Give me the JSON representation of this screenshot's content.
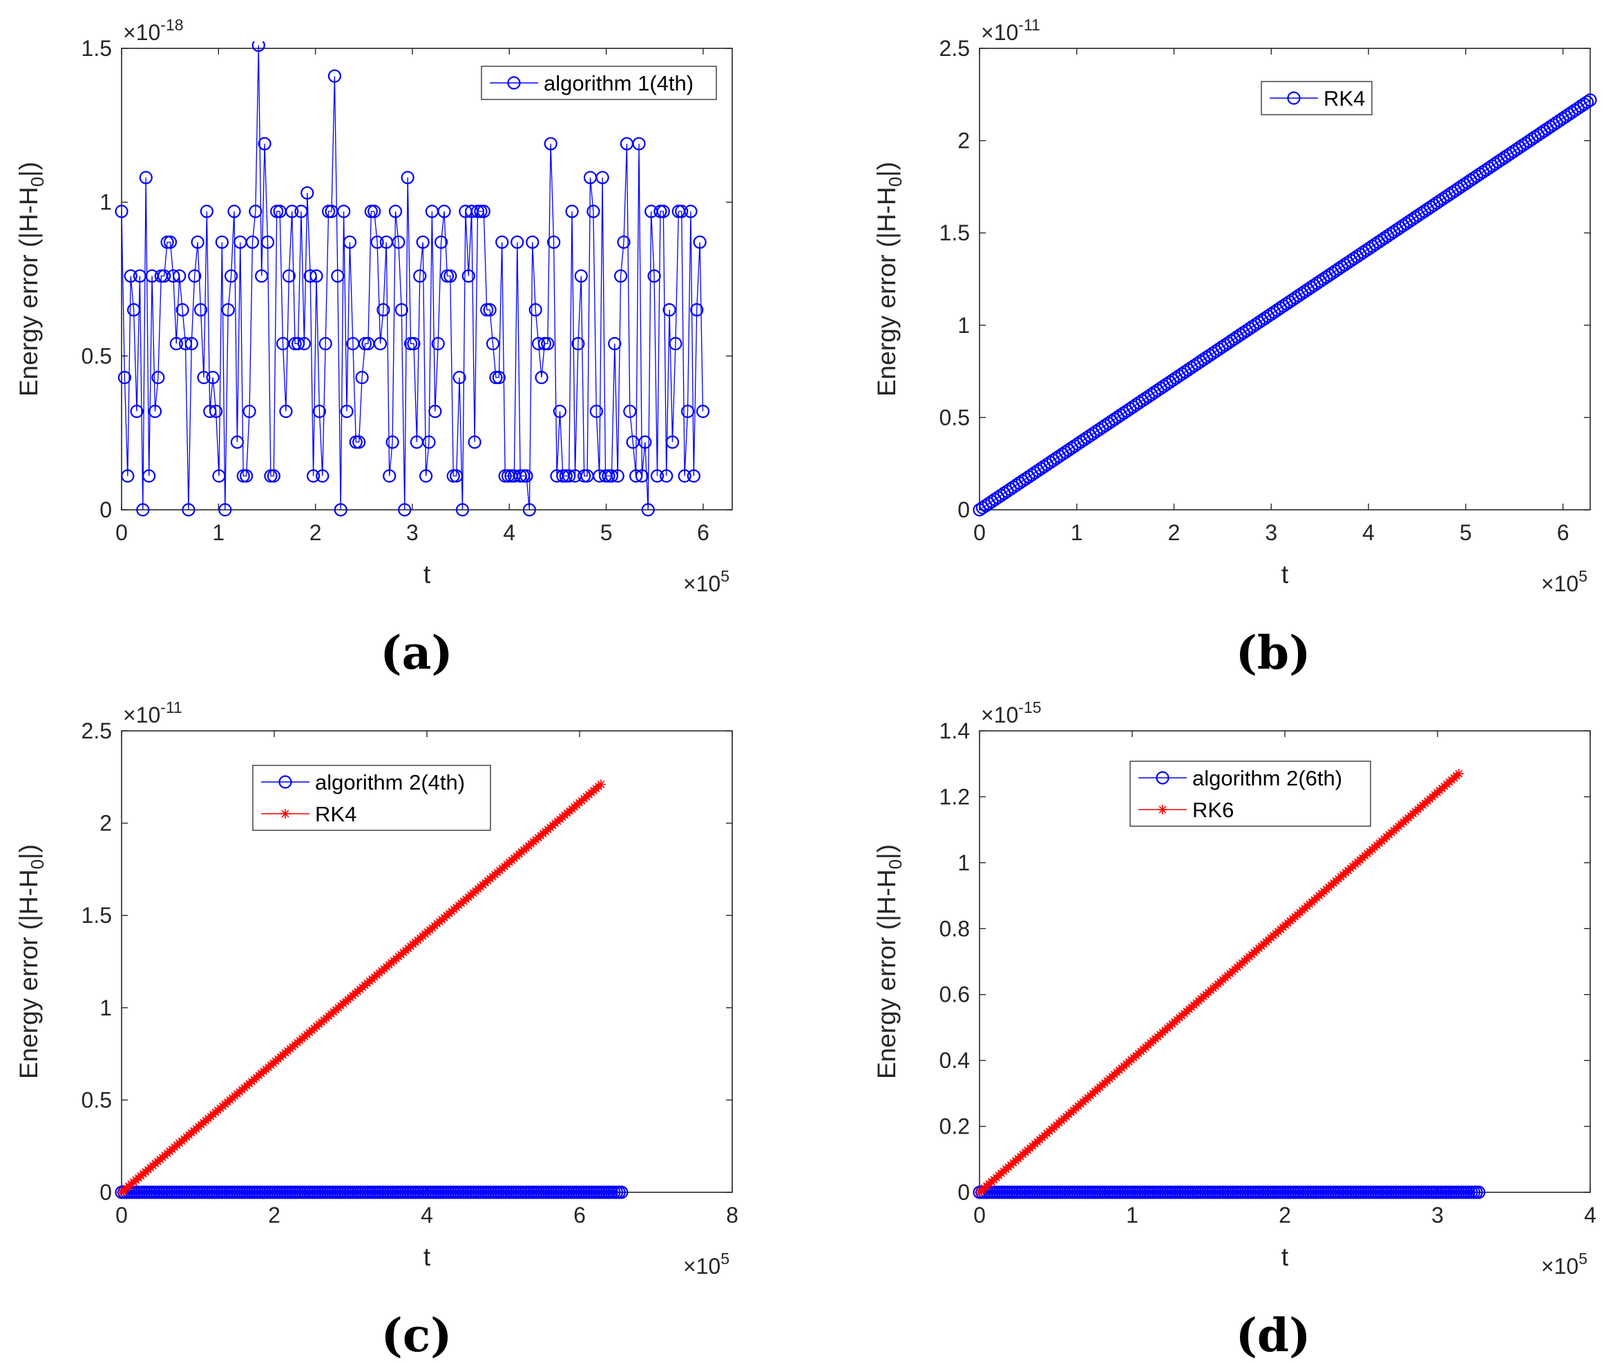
{
  "colors": {
    "blue": "#0000ff",
    "red": "#ff0000",
    "axis": "#262626",
    "grid": "#000000"
  },
  "chart_data": [
    {
      "panel": "(a)",
      "type": "line",
      "xlabel": "t",
      "ylabel_parts": [
        "Energy error (|H-H",
        "0",
        "|)"
      ],
      "x_multiplier_base": "×10",
      "x_multiplier_exp": "5",
      "y_multiplier_base": "×10",
      "y_multiplier_exp": "-18",
      "xlim": [
        0,
        6.3
      ],
      "ylim": [
        0,
        1.5
      ],
      "xticks": [
        0,
        1,
        2,
        3,
        4,
        5,
        6
      ],
      "yticks": [
        0,
        0.5,
        1,
        1.5
      ],
      "legend": "top-right",
      "series": [
        {
          "name": "algorithm 1(4th)",
          "color": "#0000ff",
          "marker": "circle",
          "x_start": 0,
          "x_step": 0.0314,
          "values": [
            0.97,
            0.43,
            0.11,
            0.76,
            0.65,
            0.32,
            0.76,
            0,
            1.08,
            0.11,
            0.76,
            0.32,
            0.43,
            0.76,
            0.76,
            0.87,
            0.87,
            0.76,
            0.54,
            0.76,
            0.65,
            0.54,
            0,
            0.54,
            0.76,
            0.87,
            0.65,
            0.43,
            0.97,
            0.32,
            0.43,
            0.32,
            0.11,
            0.87,
            0,
            0.65,
            0.76,
            0.97,
            0.22,
            0.87,
            0.11,
            0.11,
            0.32,
            0.87,
            0.97,
            1.51,
            0.76,
            1.19,
            0.87,
            0.11,
            0.11,
            0.97,
            0.97,
            0.54,
            0.32,
            0.76,
            0.97,
            0.54,
            0.54,
            0.97,
            0.54,
            1.03,
            0.76,
            0.11,
            0.76,
            0.32,
            0.11,
            0.54,
            0.97,
            0.97,
            1.41,
            0.76,
            0,
            0.97,
            0.32,
            0.87,
            0.54,
            0.22,
            0.22,
            0.43,
            0.54,
            0.54,
            0.97,
            0.97,
            0.87,
            0.54,
            0.65,
            0.87,
            0.11,
            0.22,
            0.97,
            0.87,
            0.65,
            0,
            1.08,
            0.54,
            0.54,
            0.22,
            0.76,
            0.87,
            0.11,
            0.22,
            0.97,
            0.32,
            0.54,
            0.87,
            0.97,
            0.76,
            0.76,
            0.11,
            0.11,
            0.43,
            0,
            0.97,
            0.76,
            0.97,
            0.22,
            0.97,
            0.97,
            0.97,
            0.65,
            0.65,
            0.54,
            0.43,
            0.43,
            0.87,
            0.11,
            0.11,
            0.11,
            0.11,
            0.87,
            0.11,
            0.11,
            0.11,
            0,
            0.87,
            0.65,
            0.54,
            0.43,
            0.54,
            0.54,
            1.19,
            0.87,
            0.11,
            0.32,
            0.11,
            0.11,
            0.11,
            0.97,
            0.11,
            0.54,
            0.76,
            0.11,
            0.11,
            1.08,
            0.97,
            0.32,
            0.11,
            1.08,
            0.11,
            0.11,
            0.11,
            0.54,
            0.11,
            0.76,
            0.87,
            1.19,
            0.32,
            0.22,
            0.11,
            1.19,
            0.11,
            0.22,
            0,
            0.97,
            0.76,
            0.11,
            0.97,
            0.97,
            0.11,
            0.65,
            0.22,
            0.54,
            0.97,
            0.97,
            0.11,
            0.32,
            0.97,
            0.11,
            0.65,
            0.87,
            0.32
          ]
        }
      ]
    },
    {
      "panel": "(b)",
      "type": "line",
      "xlabel": "t",
      "ylabel_parts": [
        "Energy error (|H-H",
        "0",
        "|)"
      ],
      "x_multiplier_base": "×10",
      "x_multiplier_exp": "5",
      "y_multiplier_base": "×10",
      "y_multiplier_exp": "-11",
      "xlim": [
        0,
        6.28
      ],
      "ylim": [
        0,
        2.5
      ],
      "xticks": [
        0,
        1,
        2,
        3,
        4,
        5,
        6
      ],
      "yticks": [
        0,
        0.5,
        1,
        1.5,
        2,
        2.5
      ],
      "legend": "top-center",
      "series": [
        {
          "name": "RK4",
          "color": "#0000ff",
          "marker": "circle",
          "shape": "linear",
          "x": [
            0,
            6.28
          ],
          "y": [
            0,
            2.22
          ],
          "n_points": 200
        }
      ]
    },
    {
      "panel": "(c)",
      "type": "line",
      "xlabel": "t",
      "ylabel_parts": [
        "Energy error (|H-H",
        "0",
        "|)"
      ],
      "x_multiplier_base": "×10",
      "x_multiplier_exp": "5",
      "y_multiplier_base": "×10",
      "y_multiplier_exp": "-11",
      "xlim": [
        0,
        8
      ],
      "ylim": [
        0,
        2.5
      ],
      "xticks": [
        0,
        2,
        4,
        6,
        8
      ],
      "yticks": [
        0,
        0.5,
        1,
        1.5,
        2,
        2.5
      ],
      "legend": "top-center",
      "series": [
        {
          "name": "algorithm 2(4th)",
          "color": "#0000ff",
          "marker": "circle",
          "shape": "linear",
          "x": [
            0,
            6.55
          ],
          "y": [
            0,
            0
          ],
          "n_points": 200
        },
        {
          "name": "RK4",
          "color": "#ff0000",
          "marker": "star",
          "shape": "linear",
          "x": [
            0,
            6.28
          ],
          "y": [
            0,
            2.21
          ],
          "n_points": 200
        }
      ]
    },
    {
      "panel": "(d)",
      "type": "line",
      "xlabel": "t",
      "ylabel_parts": [
        "Energy error (|H-H",
        "0",
        "|)"
      ],
      "x_multiplier_base": "×10",
      "x_multiplier_exp": "5",
      "y_multiplier_base": "×10",
      "y_multiplier_exp": "-15",
      "xlim": [
        0,
        4
      ],
      "ylim": [
        0,
        1.4
      ],
      "xticks": [
        0,
        1,
        2,
        3,
        4
      ],
      "yticks": [
        0,
        0.2,
        0.4,
        0.6,
        0.8,
        1,
        1.2,
        1.4
      ],
      "legend": "top-center",
      "series": [
        {
          "name": "algorithm 2(6th)",
          "color": "#0000ff",
          "marker": "circle",
          "shape": "linear",
          "x": [
            0,
            3.27
          ],
          "y": [
            0,
            0
          ],
          "n_points": 200
        },
        {
          "name": "RK6",
          "color": "#ff0000",
          "marker": "star",
          "shape": "linear",
          "x": [
            0,
            3.14
          ],
          "y": [
            0,
            1.27
          ],
          "n_points": 200
        }
      ]
    }
  ]
}
